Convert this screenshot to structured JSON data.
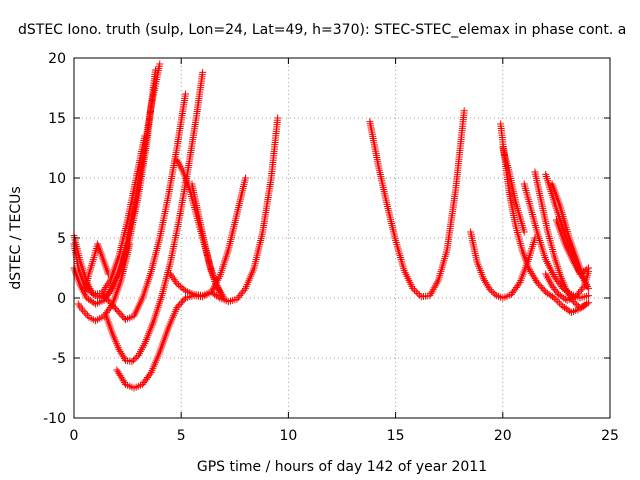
{
  "chart_data": {
    "type": "scatter",
    "title": "dSTEC Iono. truth (sulp, Lon=24, Lat=49, h=370): STEC-STEC_elemax in phase cont. a",
    "xlabel": "GPS time / hours of day 142 of year 2011",
    "ylabel": "dSTEC  / TECUs",
    "xlim": [
      0,
      25
    ],
    "ylim": [
      -10,
      20
    ],
    "xticks": [
      "0",
      "5",
      "10",
      "15",
      "20",
      "25"
    ],
    "yticks": [
      "-10",
      "-5",
      "0",
      "5",
      "10",
      "15",
      "20"
    ],
    "grid": true,
    "marker": "+",
    "color": "#ff0000",
    "series": [
      {
        "x": [
          0.0,
          0.3,
          0.6,
          0.9,
          1.2,
          1.6,
          2.0,
          2.4,
          2.8,
          3.2,
          3.6,
          4.0
        ],
        "y": [
          5.2,
          3.0,
          1.3,
          0.3,
          0.0,
          0.4,
          1.8,
          4.2,
          7.5,
          11.5,
          16.0,
          19.5
        ]
      },
      {
        "x": [
          0.0,
          0.3,
          0.6,
          1.0,
          1.4,
          1.8,
          2.2,
          2.6,
          3.0,
          3.4,
          3.8
        ],
        "y": [
          2.5,
          1.0,
          0.0,
          -0.5,
          -0.2,
          0.8,
          2.5,
          5.0,
          8.5,
          13.0,
          19.0
        ]
      },
      {
        "x": [
          0.0,
          0.2,
          0.5,
          0.9,
          1.3,
          1.7,
          2.1,
          2.5,
          2.9,
          3.3
        ],
        "y": [
          4.5,
          2.5,
          1.0,
          0.3,
          0.4,
          1.5,
          3.5,
          6.5,
          10.0,
          13.5
        ]
      },
      {
        "x": [
          0.2,
          0.4,
          0.7,
          1.0,
          1.4,
          1.8,
          2.2,
          2.6
        ],
        "y": [
          -0.5,
          -1.0,
          -1.6,
          -1.9,
          -1.5,
          -0.5,
          1.5,
          4.5
        ]
      },
      {
        "x": [
          0.5,
          0.7,
          0.9,
          1.1,
          1.3,
          1.6
        ],
        "y": [
          0.5,
          2.0,
          3.2,
          4.5,
          3.5,
          2.0
        ]
      },
      {
        "x": [
          1.3,
          1.6,
          2.0,
          2.4,
          2.8,
          3.2,
          3.6,
          4.0,
          4.4,
          4.8,
          5.2
        ],
        "y": [
          0.2,
          -0.2,
          -1.0,
          -1.8,
          -1.5,
          0.0,
          2.2,
          5.0,
          8.5,
          12.5,
          17.0
        ]
      },
      {
        "x": [
          1.5,
          1.8,
          2.1,
          2.4,
          2.7,
          3.0,
          3.3,
          3.7,
          4.1,
          4.5,
          4.9,
          5.3,
          5.7,
          6.0
        ],
        "y": [
          -1.5,
          -3.0,
          -4.3,
          -5.2,
          -5.3,
          -4.8,
          -3.8,
          -2.0,
          0.2,
          3.0,
          6.5,
          10.5,
          15.0,
          18.8
        ]
      },
      {
        "x": [
          2.0,
          2.4,
          2.8,
          3.2,
          3.6,
          4.0,
          4.4,
          4.8,
          5.2,
          5.6,
          6.0,
          6.4,
          6.8,
          7.2,
          7.6,
          8.0
        ],
        "y": [
          -6.0,
          -7.2,
          -7.5,
          -7.2,
          -6.2,
          -4.5,
          -2.5,
          -0.8,
          0.0,
          0.2,
          0.1,
          0.5,
          1.8,
          4.0,
          7.0,
          10.0
        ]
      },
      {
        "x": [
          4.8,
          5.1,
          5.4,
          5.7,
          6.0,
          6.3,
          6.6,
          7.0
        ],
        "y": [
          11.5,
          10.5,
          9.0,
          7.0,
          5.0,
          3.0,
          1.2,
          0.0
        ]
      },
      {
        "x": [
          4.5,
          4.8,
          5.2,
          5.6,
          6.0,
          6.4,
          6.8,
          7.2,
          7.6,
          8.0,
          8.4,
          8.8,
          9.2,
          9.5
        ],
        "y": [
          2.0,
          1.2,
          0.6,
          0.3,
          0.2,
          0.5,
          0.0,
          -0.3,
          -0.1,
          0.8,
          2.5,
          5.5,
          10.0,
          15.0
        ]
      },
      {
        "x": [
          5.5,
          5.8,
          6.1,
          6.4,
          6.8
        ],
        "y": [
          9.5,
          7.0,
          4.5,
          2.2,
          0.5
        ]
      },
      {
        "x": [
          13.8,
          14.2,
          14.6,
          15.0,
          15.4,
          15.8,
          16.2,
          16.6,
          17.0,
          17.4,
          17.8,
          18.2
        ],
        "y": [
          14.7,
          11.0,
          7.8,
          4.8,
          2.3,
          0.8,
          0.1,
          0.2,
          1.5,
          4.0,
          9.0,
          15.6
        ]
      },
      {
        "x": [
          18.5,
          18.8,
          19.1,
          19.4,
          19.7,
          20.0,
          20.4,
          20.8,
          21.2,
          21.5
        ],
        "y": [
          5.5,
          3.0,
          1.6,
          0.7,
          0.2,
          0.0,
          0.3,
          1.3,
          3.2,
          5.0
        ]
      },
      {
        "x": [
          19.9,
          20.1,
          20.3,
          20.6,
          20.9,
          21.2,
          21.6,
          22.0,
          22.4,
          22.8,
          23.2,
          23.6,
          24.0
        ],
        "y": [
          14.5,
          11.5,
          8.8,
          6.0,
          4.0,
          2.5,
          1.3,
          0.5,
          0.0,
          -0.7,
          -1.2,
          -0.9,
          -0.4
        ]
      },
      {
        "x": [
          20.0,
          20.3,
          20.6,
          21.0
        ],
        "y": [
          12.5,
          10.5,
          8.0,
          5.5
        ]
      },
      {
        "x": [
          21.0,
          21.3,
          21.6,
          22.0,
          22.4,
          22.8,
          23.2,
          23.6,
          24.0
        ],
        "y": [
          9.5,
          7.5,
          5.5,
          3.2,
          1.8,
          0.8,
          0.3,
          0.0,
          0.2
        ]
      },
      {
        "x": [
          21.5,
          21.8,
          22.1,
          22.4,
          22.7,
          23.0,
          23.3,
          23.6,
          23.9
        ],
        "y": [
          10.5,
          8.0,
          5.5,
          3.5,
          1.8,
          0.5,
          -0.3,
          -0.8,
          -0.5
        ]
      },
      {
        "x": [
          22.0,
          22.4,
          22.8,
          23.2,
          23.6,
          24.0
        ],
        "y": [
          10.3,
          8.0,
          5.8,
          3.8,
          2.0,
          2.5
        ]
      },
      {
        "x": [
          22.3,
          22.7,
          23.1,
          23.5,
          23.9
        ],
        "y": [
          9.5,
          7.5,
          5.0,
          3.0,
          1.0
        ]
      },
      {
        "x": [
          22.5,
          22.9,
          23.3,
          23.7,
          24.0
        ],
        "y": [
          6.5,
          4.5,
          3.0,
          1.8,
          0.8
        ]
      },
      {
        "x": [
          22.0,
          22.3,
          22.6,
          23.0,
          23.4,
          23.8,
          24.0
        ],
        "y": [
          2.0,
          1.0,
          0.3,
          -0.2,
          0.1,
          1.0,
          2.2
        ]
      }
    ]
  }
}
